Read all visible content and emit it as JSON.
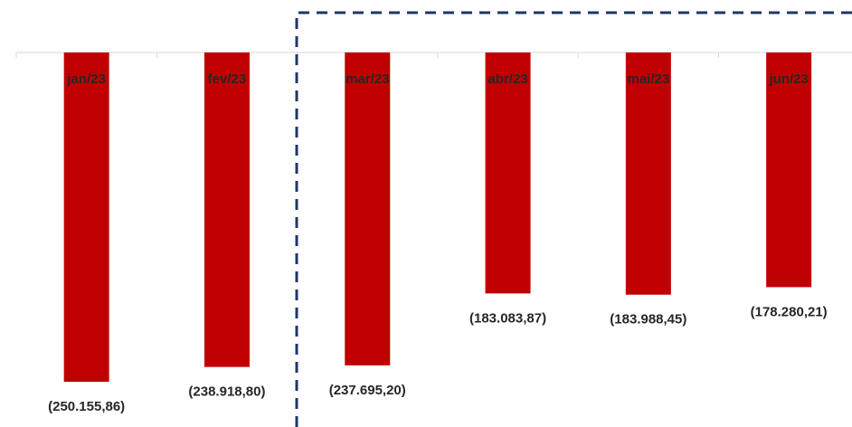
{
  "chart_data": {
    "type": "bar",
    "categories": [
      "jan/23",
      "fev/23",
      "mar/23",
      "abr/23",
      "mai/23",
      "jun/23"
    ],
    "values": [
      -250155.86,
      -238918.8,
      -237695.2,
      -183083.87,
      -183988.45,
      -178280.21
    ],
    "value_labels": [
      "(250.155,86)",
      "(238.918,80)",
      "(237.695,20)",
      "(183.083,87)",
      "(183.988,45)",
      "(178.280,21)"
    ],
    "color": "#c00000"
  }
}
